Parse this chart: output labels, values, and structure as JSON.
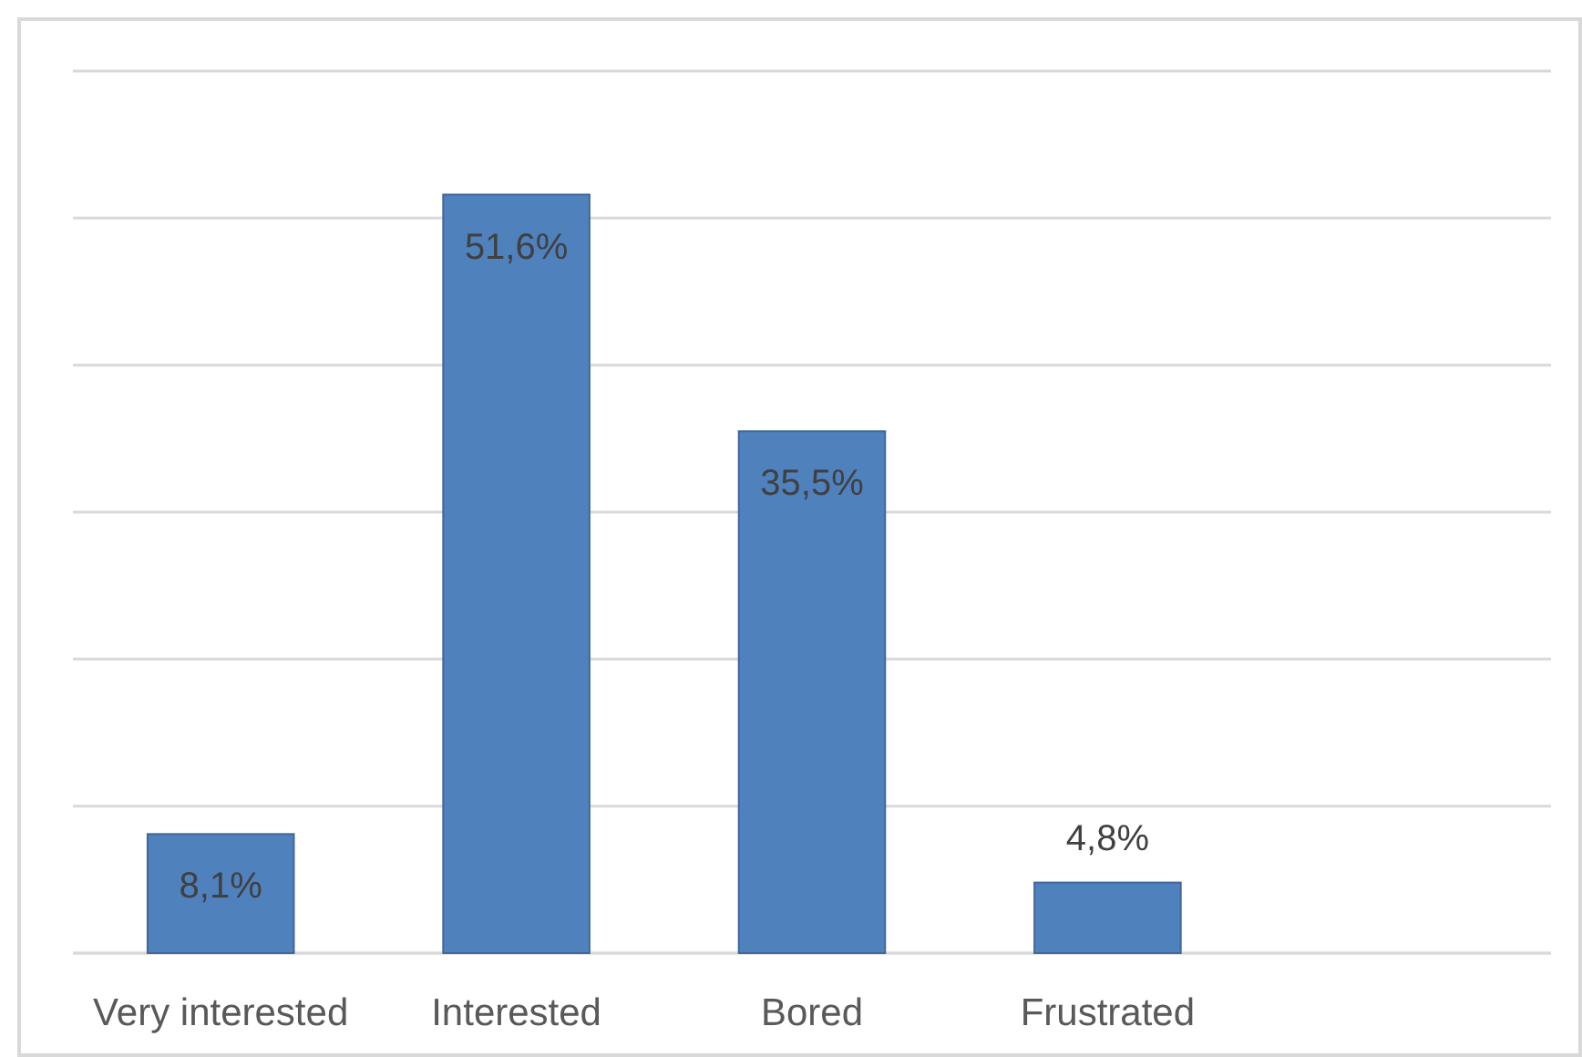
{
  "chart_data": {
    "type": "bar",
    "categories": [
      "Very interested",
      "Interested",
      "Bored",
      "Frustrated",
      null
    ],
    "values": [
      8.1,
      51.6,
      35.5,
      4.8,
      null
    ],
    "color": "#4f81bd",
    "value_labels": [
      "8,1%",
      "51,6%",
      "35,5%",
      "4,8%",
      null
    ],
    "ylim": [
      0,
      60
    ],
    "yticks": [
      {
        "value": 0,
        "label": null
      },
      {
        "value": 10,
        "label": null
      },
      {
        "value": 20,
        "label": null
      },
      {
        "value": 30,
        "label": null
      },
      {
        "value": 40,
        "label": null
      },
      {
        "value": 50,
        "label": null
      },
      {
        "value": 60,
        "label": null
      }
    ],
    "grid": "y",
    "tick_labels": "x"
  }
}
